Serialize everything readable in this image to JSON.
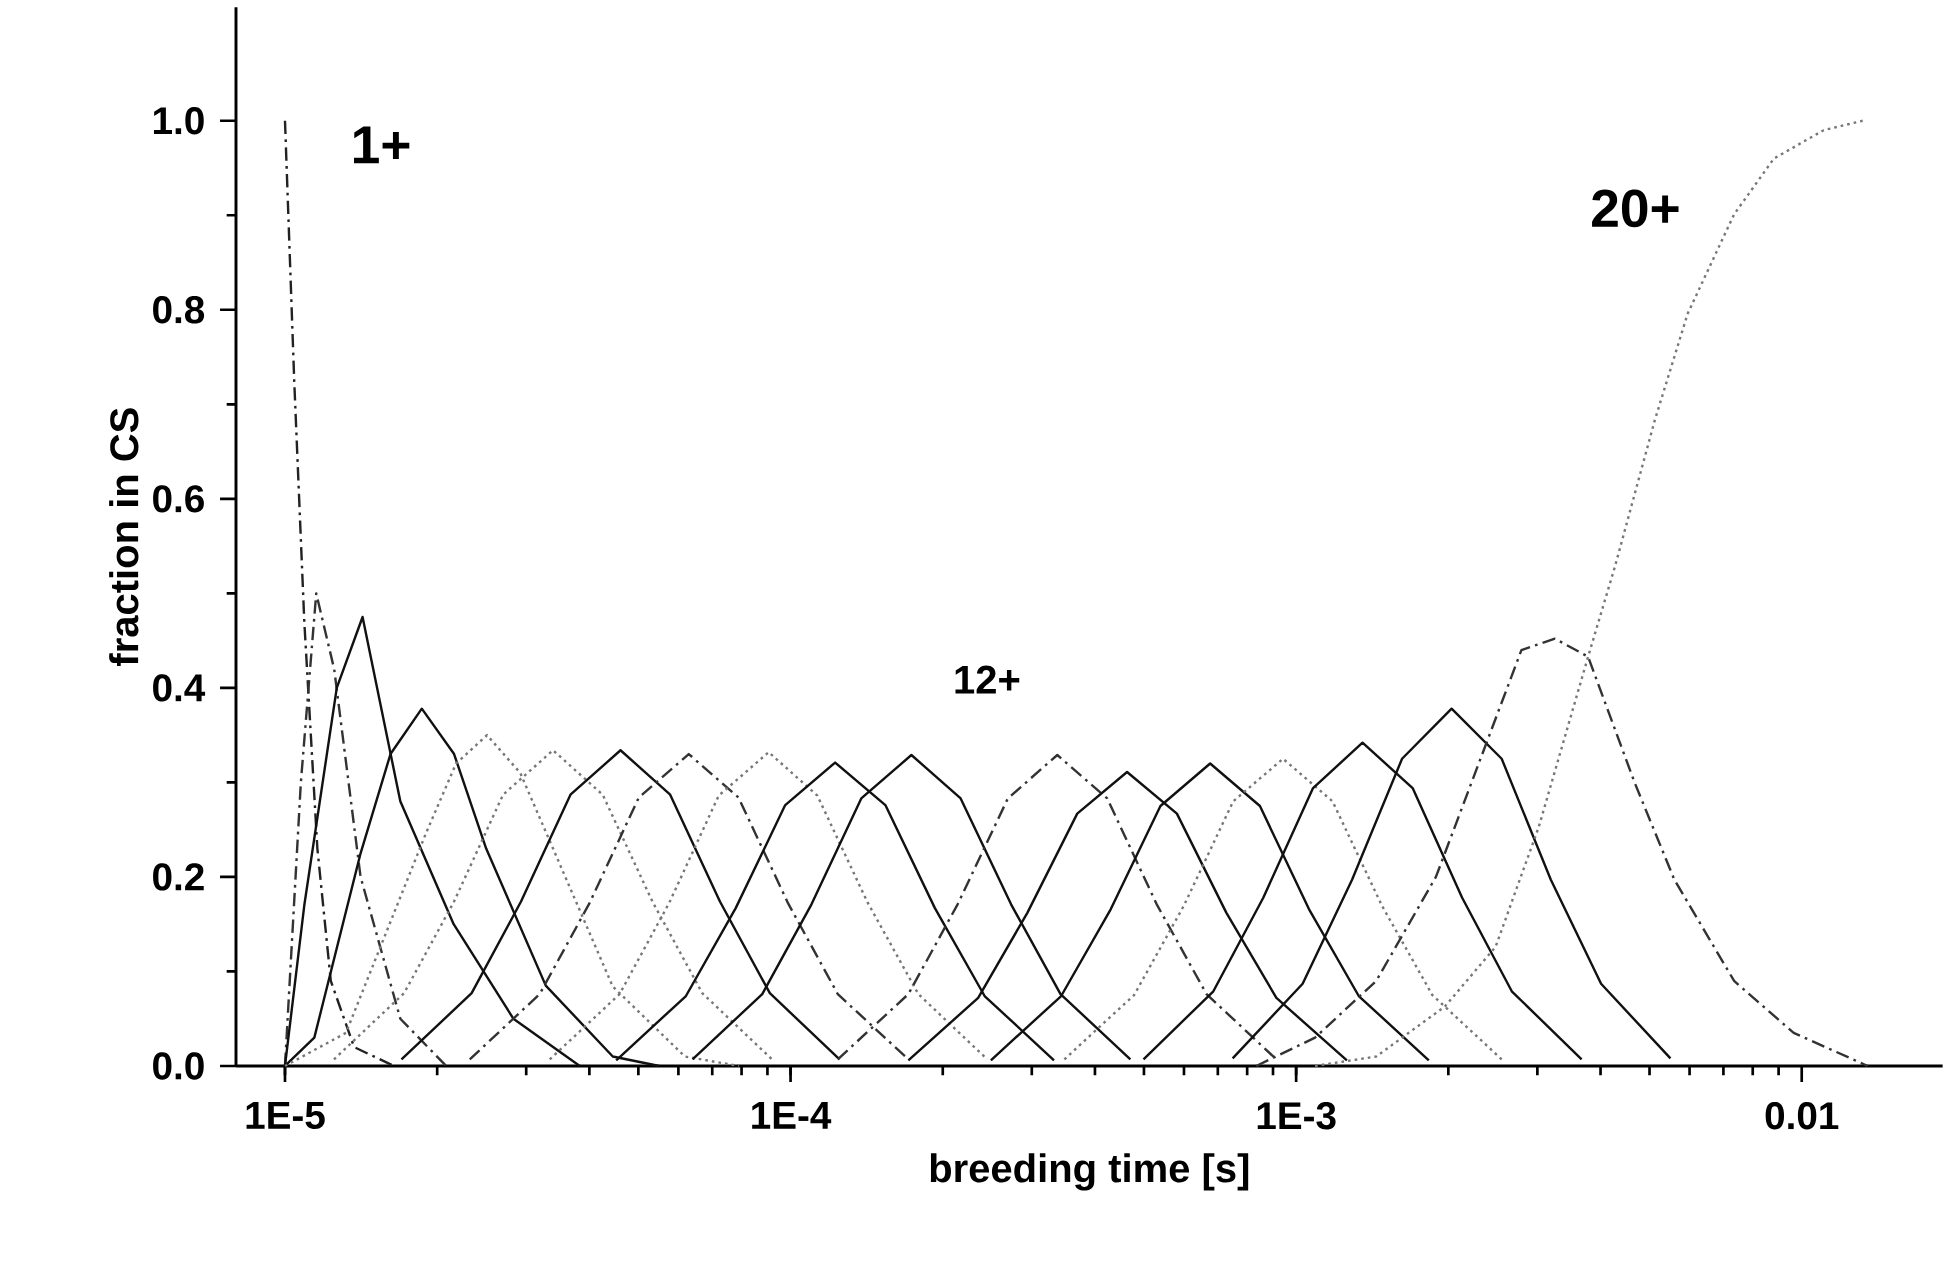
{
  "chart_data": {
    "type": "line",
    "xlabel": "breeding time [s]",
    "ylabel": "fraction in CS",
    "log": "x",
    "xlim": [
      8e-06,
      0.019
    ],
    "ylim": [
      0,
      1.12
    ],
    "xticks": [
      {
        "value": 1e-05,
        "label": "1E-5"
      },
      {
        "value": 0.0001,
        "label": "1E-4"
      },
      {
        "value": 0.001,
        "label": "1E-3"
      },
      {
        "value": 0.01,
        "label": "0.01"
      }
    ],
    "yticks": [
      {
        "value": 0,
        "label": "0.0"
      },
      {
        "value": 0.2,
        "label": "0.2"
      },
      {
        "value": 0.4,
        "label": "0.4"
      },
      {
        "value": 0.6,
        "label": "0.6"
      },
      {
        "value": 0.8,
        "label": "0.8"
      },
      {
        "value": 1.0,
        "label": "1.0"
      }
    ],
    "grid": false,
    "marker": "none",
    "annotations": [
      "1+",
      "12+",
      "20+"
    ],
    "series": [
      {
        "color": "#222222",
        "line_style": "dashed",
        "x": [
          1e-05,
          1.043e-05,
          1.092e-05,
          1.159e-05,
          1.232e-05,
          1.37e-05,
          1.642e-05
        ],
        "values": [
          1.0,
          0.725,
          0.47,
          0.23,
          0.09,
          0.02,
          0
        ]
      },
      {
        "color": "#333333",
        "line_style": "dashed",
        "x": [
          1e-05,
          1.075e-05,
          1.153e-05,
          1.251e-05,
          1.411e-05,
          1.691e-05,
          2.084e-05
        ],
        "values": [
          0,
          0.3,
          0.5,
          0.42,
          0.2,
          0.05,
          0
        ]
      },
      {
        "color": "#111111",
        "line_style": "solid",
        "x": [
          1e-05,
          1.092e-05,
          1.266e-05,
          1.424e-05,
          1.691e-05,
          2.156e-05,
          2.83e-05,
          3.83e-05
        ],
        "values": [
          0,
          0.17,
          0.4,
          0.475,
          0.28,
          0.15,
          0.05,
          0
        ]
      },
      {
        "color": "#111111",
        "line_style": "solid",
        "x": [
          1e-05,
          1.143e-05,
          1.411e-05,
          1.617e-05,
          1.865e-05,
          2.16e-05,
          2.5e-05,
          3.28e-05,
          4.45e-05,
          5.5e-05
        ],
        "values": [
          0,
          0.03,
          0.225,
          0.33,
          0.378,
          0.33,
          0.23,
          0.085,
          0.01,
          0
        ]
      },
      {
        "color": "#777777",
        "line_style": "dotted",
        "x": [
          1e-05,
          1.32e-05,
          1.9e-05,
          2.18e-05,
          2.51e-05,
          2.92e-05,
          3.39e-05,
          4.45e-05,
          6.18e-05,
          7.9e-05
        ],
        "values": [
          0,
          0.035,
          0.246,
          0.32,
          0.35,
          0.31,
          0.23,
          0.084,
          0.01,
          0
        ]
      },
      {
        "color": "#777777",
        "line_style": "dotted",
        "x": [
          1.25e-05,
          1.72e-05,
          2.16e-05,
          2.7e-05,
          3.39e-05,
          4.25e-05,
          5.33e-05,
          6.69e-05,
          9.19e-05
        ],
        "values": [
          0.007,
          0.077,
          0.174,
          0.287,
          0.334,
          0.287,
          0.174,
          0.077,
          0.007
        ]
      },
      {
        "color": "#111111",
        "line_style": "solid",
        "x": [
          1.7e-05,
          2.34e-05,
          2.93e-05,
          3.67e-05,
          4.61e-05,
          5.78e-05,
          7.25e-05,
          9.1e-05,
          0.000125
        ],
        "values": [
          0.007,
          0.077,
          0.174,
          0.287,
          0.334,
          0.287,
          0.174,
          0.077,
          0.007
        ]
      },
      {
        "color": "#333333",
        "line_style": "dashed",
        "x": [
          2.32e-05,
          3.19e-05,
          4e-05,
          5.01e-05,
          6.29e-05,
          7.89e-05,
          9.89e-05,
          0.000124,
          0.000171
        ],
        "values": [
          0.007,
          0.076,
          0.172,
          0.284,
          0.33,
          0.284,
          0.172,
          0.076,
          0.007
        ]
      },
      {
        "color": "#777777",
        "line_style": "dotted",
        "x": [
          3.34e-05,
          4.59e-05,
          5.76e-05,
          7.21e-05,
          9.05e-05,
          0.000113,
          0.000142,
          0.000179,
          0.000245
        ],
        "values": [
          0.007,
          0.076,
          0.173,
          0.286,
          0.332,
          0.286,
          0.173,
          0.076,
          0.007
        ]
      },
      {
        "color": "#111111",
        "line_style": "solid",
        "x": [
          4.52e-05,
          6.21e-05,
          7.79e-05,
          9.76e-05,
          0.0001225,
          0.000154,
          0.000193,
          0.000242,
          0.000332
        ],
        "values": [
          0.006,
          0.074,
          0.167,
          0.276,
          0.321,
          0.276,
          0.167,
          0.074,
          0.006
        ]
      },
      {
        "color": "#111111",
        "line_style": "solid",
        "x": [
          6.4e-05,
          8.79e-05,
          0.00011,
          0.000138,
          0.0001734,
          0.000217,
          0.000273,
          0.000342,
          0.00047
        ],
        "values": [
          0.007,
          0.076,
          0.171,
          0.283,
          0.329,
          0.283,
          0.171,
          0.076,
          0.007
        ]
      },
      {
        "color": "#333333",
        "line_style": "dashed",
        "x": [
          0.000124,
          0.000171,
          0.000214,
          0.000269,
          0.000337,
          0.000423,
          0.00053,
          0.000665,
          0.000914
        ],
        "values": [
          0.007,
          0.076,
          0.171,
          0.283,
          0.329,
          0.283,
          0.171,
          0.076,
          0.007
        ]
      },
      {
        "color": "#111111",
        "line_style": "solid",
        "x": [
          0.000171,
          0.000235,
          0.000294,
          0.000369,
          0.000463,
          0.000581,
          0.000728,
          0.000914,
          0.00126
        ],
        "values": [
          0.006,
          0.072,
          0.162,
          0.267,
          0.311,
          0.267,
          0.162,
          0.072,
          0.006
        ]
      },
      {
        "color": "#111111",
        "line_style": "solid",
        "x": [
          0.000249,
          0.000343,
          0.00043,
          0.000539,
          0.000676,
          0.000848,
          0.00106,
          0.00133,
          0.00183
        ],
        "values": [
          0.006,
          0.074,
          0.166,
          0.275,
          0.32,
          0.275,
          0.166,
          0.074,
          0.006
        ]
      },
      {
        "color": "#777777",
        "line_style": "dotted",
        "x": [
          0.000348,
          0.000478,
          0.000599,
          0.000751,
          0.000942,
          0.00118,
          0.00148,
          0.00186,
          0.00255
        ],
        "values": [
          0.007,
          0.075,
          0.169,
          0.28,
          0.325,
          0.28,
          0.169,
          0.075,
          0.007
        ]
      },
      {
        "color": "#111111",
        "line_style": "solid",
        "x": [
          0.000499,
          0.000686,
          0.000861,
          0.00108,
          0.001353,
          0.0017,
          0.00213,
          0.00267,
          0.00367
        ],
        "values": [
          0.007,
          0.079,
          0.178,
          0.294,
          0.342,
          0.294,
          0.178,
          0.079,
          0.007
        ]
      },
      {
        "color": "#111111",
        "line_style": "solid",
        "x": [
          0.000749,
          0.00103,
          0.00129,
          0.00162,
          0.00203,
          0.00255,
          0.00319,
          0.00401,
          0.0055
        ],
        "values": [
          0.008,
          0.087,
          0.197,
          0.325,
          0.378,
          0.325,
          0.197,
          0.087,
          0.008
        ]
      },
      {
        "color": "#333333",
        "line_style": "dashed",
        "x": [
          0.000834,
          0.00109,
          0.00144,
          0.00189,
          0.00226,
          0.00279,
          0.00325,
          0.00378,
          0.00467,
          0.0056,
          0.00735,
          0.00964,
          0.0135
        ],
        "values": [
          0,
          0.03,
          0.09,
          0.2,
          0.31,
          0.44,
          0.452,
          0.433,
          0.3,
          0.197,
          0.09,
          0.035,
          0
        ]
      },
      {
        "color": "#777777",
        "line_style": "dotted",
        "x": [
          0.00109,
          0.00144,
          0.00197,
          0.00248,
          0.00302,
          0.00378,
          0.00427,
          0.00512,
          0.00595,
          0.00735,
          0.00881,
          0.01105,
          0.0132
        ],
        "values": [
          0,
          0.01,
          0.063,
          0.126,
          0.253,
          0.433,
          0.528,
          0.683,
          0.796,
          0.901,
          0.96,
          0.99,
          1.0
        ]
      }
    ]
  }
}
